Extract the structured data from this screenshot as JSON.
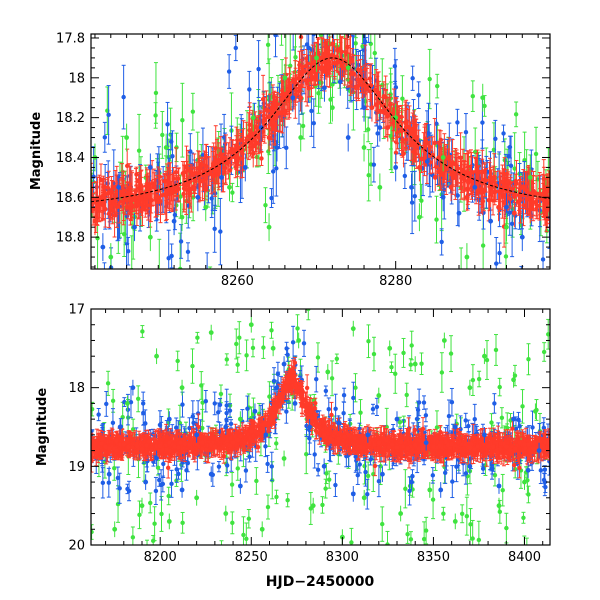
{
  "chart_data": [
    {
      "type": "scatter",
      "title": "",
      "xlabel": "",
      "ylabel": "Magnitude",
      "xlim": [
        8241.5,
        8299.5
      ],
      "ylim": [
        18.96,
        17.78
      ],
      "y_inverted": true,
      "xticks": [
        8260,
        8280
      ],
      "yticks": [
        17.8,
        18,
        18.2,
        18.4,
        18.6,
        18.8
      ],
      "x_minor_step": 2,
      "y_minor_step": 0.05,
      "colors": {
        "red": "#ff3b2a",
        "green": "#3fe33f",
        "blue": "#1f5ee6",
        "model": "#000000"
      },
      "model_curve": {
        "description": "baseline plus peaked light-curve model",
        "baseline_mag": 18.7,
        "peak_mag": 17.9,
        "peak_hjd": 8272,
        "width_days": 10,
        "x": [
          8241.5,
          8250,
          8255,
          8260,
          8264,
          8267,
          8270,
          8272,
          8274,
          8277,
          8280,
          8284,
          8289,
          8294,
          8299.5
        ],
        "y": [
          18.68,
          18.62,
          18.55,
          18.43,
          18.3,
          18.16,
          17.99,
          17.92,
          17.98,
          18.15,
          18.35,
          18.52,
          18.61,
          18.66,
          18.68
        ]
      },
      "series": [
        {
          "color": "red",
          "points": [
            [
              8242,
              18.72
            ],
            [
              8244,
              18.65
            ],
            [
              8246,
              18.6
            ],
            [
              8248,
              18.66
            ],
            [
              8250,
              18.62
            ],
            [
              8252,
              18.55
            ],
            [
              8254,
              18.58
            ],
            [
              8256,
              18.5
            ],
            [
              8258,
              18.45
            ],
            [
              8260,
              18.42
            ],
            [
              8262,
              18.38
            ],
            [
              8264,
              18.3
            ],
            [
              8266,
              18.18
            ],
            [
              8268,
              18.1
            ],
            [
              8270,
              17.95
            ],
            [
              8271,
              17.88
            ],
            [
              8272,
              17.9
            ],
            [
              8273,
              17.98
            ],
            [
              8275,
              18.05
            ],
            [
              8277,
              18.15
            ],
            [
              8279,
              18.25
            ],
            [
              8281,
              18.38
            ],
            [
              8283,
              18.45
            ],
            [
              8285,
              18.5
            ],
            [
              8287,
              18.55
            ],
            [
              8289,
              18.6
            ],
            [
              8291,
              18.62
            ],
            [
              8293,
              18.65
            ],
            [
              8295,
              18.68
            ],
            [
              8297,
              18.66
            ],
            [
              8299,
              18.7
            ]
          ]
        },
        {
          "color": "blue",
          "points": [
            [
              8243,
              18.85
            ],
            [
              8245,
              18.55
            ],
            [
              8247,
              18.75
            ],
            [
              8249,
              18.45
            ],
            [
              8252,
              18.72
            ],
            [
              8255,
              18.6
            ],
            [
              8258,
              18.5
            ],
            [
              8261,
              18.45
            ],
            [
              8263,
              18.25
            ],
            [
              8265,
              18.35
            ],
            [
              8267,
              18.1
            ],
            [
              8269,
              17.85
            ],
            [
              8271,
              18.05
            ],
            [
              8273,
              18.02
            ],
            [
              8274,
              18.3
            ],
            [
              8276,
              18.15
            ],
            [
              8278,
              18.25
            ],
            [
              8280,
              18.45
            ],
            [
              8282,
              18.55
            ],
            [
              8284,
              18.42
            ],
            [
              8286,
              18.6
            ],
            [
              8288,
              18.68
            ],
            [
              8290,
              18.55
            ],
            [
              8292,
              18.72
            ],
            [
              8294,
              18.65
            ],
            [
              8296,
              18.8
            ]
          ]
        },
        {
          "color": "green",
          "points": [
            [
              8242,
              18.4
            ],
            [
              8244,
              18.9
            ],
            [
              8246,
              18.3
            ],
            [
              8249,
              18.8
            ],
            [
              8251,
              18.35
            ],
            [
              8253,
              18.7
            ],
            [
              8256,
              18.65
            ],
            [
              8259,
              18.55
            ],
            [
              8262,
              18.2
            ],
            [
              8264,
              18.75
            ],
            [
              8266,
              18.0
            ],
            [
              8268,
              18.3
            ],
            [
              8270,
              17.9
            ],
            [
              8272,
              18.15
            ],
            [
              8274,
              17.95
            ],
            [
              8276,
              18.35
            ],
            [
              8278,
              18.55
            ],
            [
              8280,
              18.2
            ],
            [
              8283,
              18.7
            ],
            [
              8286,
              18.4
            ],
            [
              8289,
              18.9
            ],
            [
              8291,
              18.1
            ],
            [
              8294,
              18.75
            ],
            [
              8297,
              18.5
            ]
          ]
        }
      ]
    },
    {
      "type": "scatter",
      "title": "",
      "xlabel": "HJD−2450000",
      "ylabel": "Magnitude",
      "xlim": [
        8162,
        8414
      ],
      "ylim": [
        20,
        17
      ],
      "y_inverted": true,
      "xticks": [
        8200,
        8250,
        8300,
        8350,
        8400
      ],
      "yticks": [
        17,
        18,
        19,
        20
      ],
      "x_minor_step": 10,
      "y_minor_step": 0.2,
      "colors": {
        "red": "#ff3b2a",
        "green": "#3fe33f",
        "blue": "#1f5ee6"
      },
      "event": {
        "baseline_mag": 18.75,
        "peak_mag": 17.9,
        "peak_hjd": 8272,
        "width_days": 10
      },
      "series": [
        {
          "color": "red",
          "points": [
            [
              8170,
              18.75
            ],
            [
              8180,
              18.72
            ],
            [
              8190,
              18.78
            ],
            [
              8200,
              18.74
            ],
            [
              8210,
              18.76
            ],
            [
              8220,
              18.72
            ],
            [
              8230,
              18.75
            ],
            [
              8240,
              18.7
            ],
            [
              8250,
              18.55
            ],
            [
              8260,
              18.3
            ],
            [
              8265,
              18.1
            ],
            [
              8270,
              17.92
            ],
            [
              8275,
              18.05
            ],
            [
              8280,
              18.3
            ],
            [
              8290,
              18.6
            ],
            [
              8300,
              18.72
            ],
            [
              8310,
              18.75
            ],
            [
              8320,
              18.7
            ],
            [
              8330,
              18.76
            ],
            [
              8340,
              18.73
            ],
            [
              8350,
              18.75
            ],
            [
              8360,
              18.72
            ],
            [
              8370,
              18.76
            ],
            [
              8380,
              18.74
            ],
            [
              8390,
              18.75
            ],
            [
              8400,
              18.72
            ],
            [
              8410,
              18.74
            ]
          ]
        },
        {
          "color": "blue",
          "points": [
            [
              8172,
              19.1
            ],
            [
              8178,
              18.5
            ],
            [
              8185,
              18.0
            ],
            [
              8192,
              19.2
            ],
            [
              8198,
              18.9
            ],
            [
              8205,
              18.4
            ],
            [
              8212,
              19.3
            ],
            [
              8220,
              18.6
            ],
            [
              8228,
              19.1
            ],
            [
              8236,
              18.5
            ],
            [
              8244,
              19.25
            ],
            [
              8252,
              18.3
            ],
            [
              8258,
              18.6
            ],
            [
              8264,
              18.0
            ],
            [
              8268,
              17.7
            ],
            [
              8274,
              18.2
            ],
            [
              8282,
              18.5
            ],
            [
              8290,
              19.0
            ],
            [
              8298,
              18.45
            ],
            [
              8306,
              19.35
            ],
            [
              8314,
              18.6
            ],
            [
              8322,
              19.1
            ],
            [
              8330,
              18.4
            ],
            [
              8338,
              19.2
            ],
            [
              8346,
              18.7
            ],
            [
              8354,
              19.3
            ],
            [
              8362,
              18.5
            ],
            [
              8370,
              19.0
            ],
            [
              8378,
              18.6
            ],
            [
              8386,
              19.25
            ],
            [
              8394,
              18.4
            ],
            [
              8402,
              19.05
            ],
            [
              8408,
              18.8
            ]
          ]
        },
        {
          "color": "green",
          "points": [
            [
              8175,
              19.8
            ],
            [
              8182,
              18.2
            ],
            [
              8190,
              19.5
            ],
            [
              8198,
              17.6
            ],
            [
              8205,
              19.7
            ],
            [
              8212,
              18.0
            ],
            [
              8220,
              19.4
            ],
            [
              8228,
              17.3
            ],
            [
              8236,
              19.6
            ],
            [
              8244,
              18.4
            ],
            [
              8250,
              17.2
            ],
            [
              8256,
              19.8
            ],
            [
              8262,
              17.5
            ],
            [
              8268,
              18.9
            ],
            [
              8276,
              17.4
            ],
            [
              8284,
              19.5
            ],
            [
              8292,
              17.8
            ],
            [
              8300,
              19.9
            ],
            [
              8306,
              17.25
            ],
            [
              8312,
              19.4
            ],
            [
              8320,
              18.1
            ],
            [
              8326,
              17.5
            ],
            [
              8332,
              19.6
            ],
            [
              8340,
              17.7
            ],
            [
              8348,
              19.3
            ],
            [
              8356,
              17.4
            ],
            [
              8362,
              19.7
            ],
            [
              8370,
              18.0
            ],
            [
              8378,
              17.6
            ],
            [
              8386,
              19.5
            ],
            [
              8394,
              17.9
            ],
            [
              8400,
              19.2
            ],
            [
              8406,
              18.3
            ]
          ]
        }
      ]
    }
  ]
}
